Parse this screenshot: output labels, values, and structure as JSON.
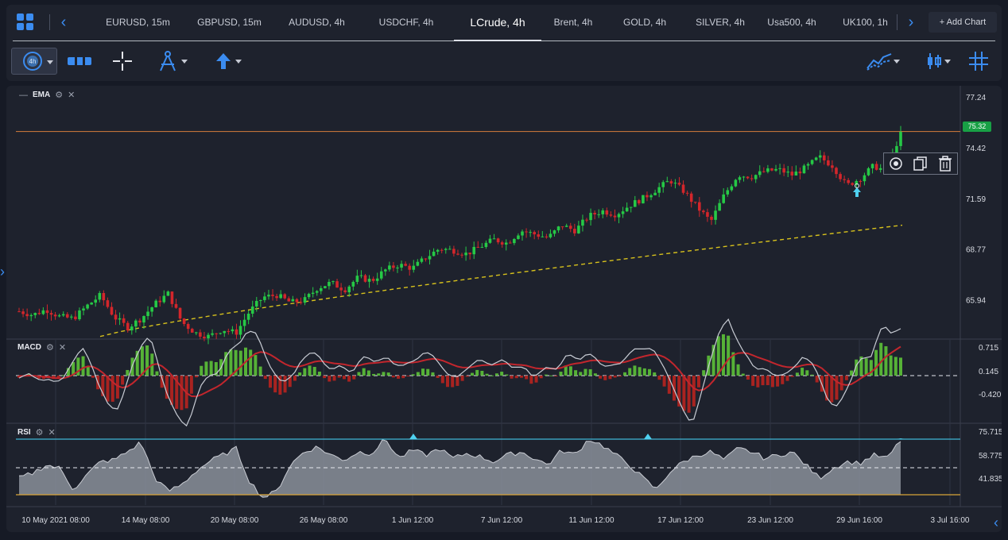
{
  "tabs": [
    {
      "label": "EURUSD, 15m"
    },
    {
      "label": "GBPUSD, 15m"
    },
    {
      "label": "AUDUSD, 4h"
    },
    {
      "label": "USDCHF, 4h"
    },
    {
      "label": "LCrude, 4h",
      "active": true
    },
    {
      "label": "Brent, 4h"
    },
    {
      "label": "GOLD, 4h"
    },
    {
      "label": "SILVER, 4h"
    },
    {
      "label": "Usa500, 4h"
    },
    {
      "label": "UK100, 1h"
    }
  ],
  "add_chart_label": "+ Add Chart",
  "toolbar": {
    "timeframe_label": "4h",
    "icons": [
      "timeframe-icon",
      "range-icon",
      "crosshair-icon",
      "drawing-tools-icon",
      "arrow-up-icon",
      "indicators-icon",
      "candle-type-icon",
      "grid-layout-icon"
    ]
  },
  "colors": {
    "up": "#26c946",
    "down": "#d3262b",
    "accent": "#3b8cf0",
    "level_line": "#c0723a",
    "ema": "#d8c21c",
    "macd_line": "#c8ccd4",
    "macd_signal": "#c2262d",
    "rsi_upper": "#3fb6d6",
    "rsi_lower": "#d9a53a",
    "badge": "#18a045"
  },
  "panes": {
    "price": {
      "label": "EMA"
    },
    "macd": {
      "label": "MACD"
    },
    "rsi": {
      "label": "RSI"
    }
  },
  "chart_data": [
    {
      "type": "candlestick",
      "instrument": "LCrude, 4h",
      "ylim": [
        63.8,
        77.6
      ],
      "y_ticks": [
        "77.24",
        "74.42",
        "71.59",
        "68.77",
        "65.94"
      ],
      "current_price": "75.32",
      "x_ticks": [
        "10 May 2021 08:00",
        "14 May 08:00",
        "20 May 08:00",
        "26 May 08:00",
        "1 Jun 12:00",
        "7 Jun 12:00",
        "11 Jun 12:00",
        "17 Jun 12:00",
        "23 Jun 12:00",
        "29 Jun 16:00",
        "3 Jul 16:00"
      ],
      "close_path": [
        65.3,
        65.1,
        65.4,
        65.0,
        64.9,
        65.6,
        66.2,
        65.0,
        64.4,
        64.9,
        65.7,
        66.3,
        64.7,
        64.1,
        63.9,
        64.3,
        64.1,
        65.3,
        66.1,
        66.2,
        65.8,
        65.9,
        66.6,
        66.9,
        66.5,
        67.2,
        67.0,
        67.6,
        67.9,
        67.7,
        68.3,
        68.8,
        68.7,
        68.5,
        68.9,
        69.3,
        69.1,
        69.8,
        69.6,
        69.4,
        70.1,
        69.8,
        70.6,
        70.9,
        70.7,
        71.2,
        71.6,
        72.1,
        72.6,
        72.0,
        71.1,
        70.3,
        71.8,
        72.9,
        72.8,
        73.1,
        73.2,
        72.9,
        73.3,
        73.9,
        73.4,
        72.3,
        72.7,
        73.4,
        73.1,
        75.3
      ],
      "ema_start": 63.9,
      "ema_end": 70.1,
      "horizontal_level": 75.32
    },
    {
      "type": "line",
      "indicator": "MACD",
      "y_ticks": [
        "0.715",
        "0.145",
        "-0.420"
      ],
      "zero_value": 0.145
    },
    {
      "type": "area",
      "indicator": "RSI",
      "y_ticks": [
        "75.715",
        "58.775",
        "41.835"
      ],
      "upper_band": 75.715,
      "mid": 58.775,
      "lower_band": 41.835,
      "rsi_path": [
        52,
        55,
        60,
        58,
        45,
        54,
        62,
        63,
        68,
        74,
        52,
        44,
        48,
        56,
        62,
        66,
        70,
        50,
        40,
        44,
        60,
        68,
        71,
        66,
        63,
        68,
        67,
        76,
        64,
        69,
        66,
        70,
        64,
        67,
        65,
        62,
        66,
        68,
        64,
        60,
        69,
        66,
        76,
        72,
        66,
        60,
        52,
        45,
        56,
        62,
        66,
        68,
        63,
        70,
        68,
        64,
        66,
        68,
        60,
        52,
        58,
        62,
        61,
        66,
        64,
        75
      ]
    }
  ]
}
